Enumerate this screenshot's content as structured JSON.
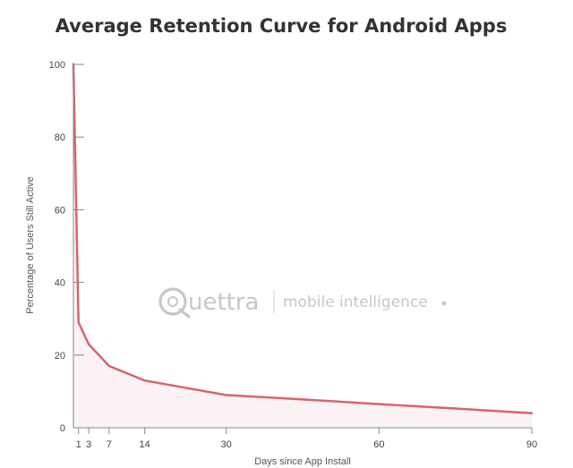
{
  "chart_data": {
    "type": "line",
    "title": "Average Retention Curve for Android Apps",
    "xlabel": "Days since App Install",
    "ylabel": "Percentage of Users Still Active",
    "xlim": [
      0,
      90
    ],
    "ylim": [
      0,
      100
    ],
    "x_ticks": [
      1,
      3,
      7,
      14,
      30,
      60,
      90
    ],
    "y_ticks": [
      0,
      20,
      40,
      60,
      80,
      100
    ],
    "grid": false,
    "legend": "none",
    "series": [
      {
        "color": "#d9646c",
        "fill": "#fbf3f3",
        "points": [
          [
            0,
            100
          ],
          [
            1,
            29
          ],
          [
            2,
            26
          ],
          [
            3,
            23
          ],
          [
            7,
            17
          ],
          [
            14,
            13
          ],
          [
            20,
            11.5
          ],
          [
            30,
            9
          ],
          [
            45,
            7.8
          ],
          [
            60,
            6.5
          ],
          [
            75,
            5.3
          ],
          [
            90,
            4
          ]
        ]
      }
    ]
  },
  "watermark": {
    "brand": "uettra",
    "tagline": "mobile intelligence",
    "color": "#c7c7c7"
  }
}
